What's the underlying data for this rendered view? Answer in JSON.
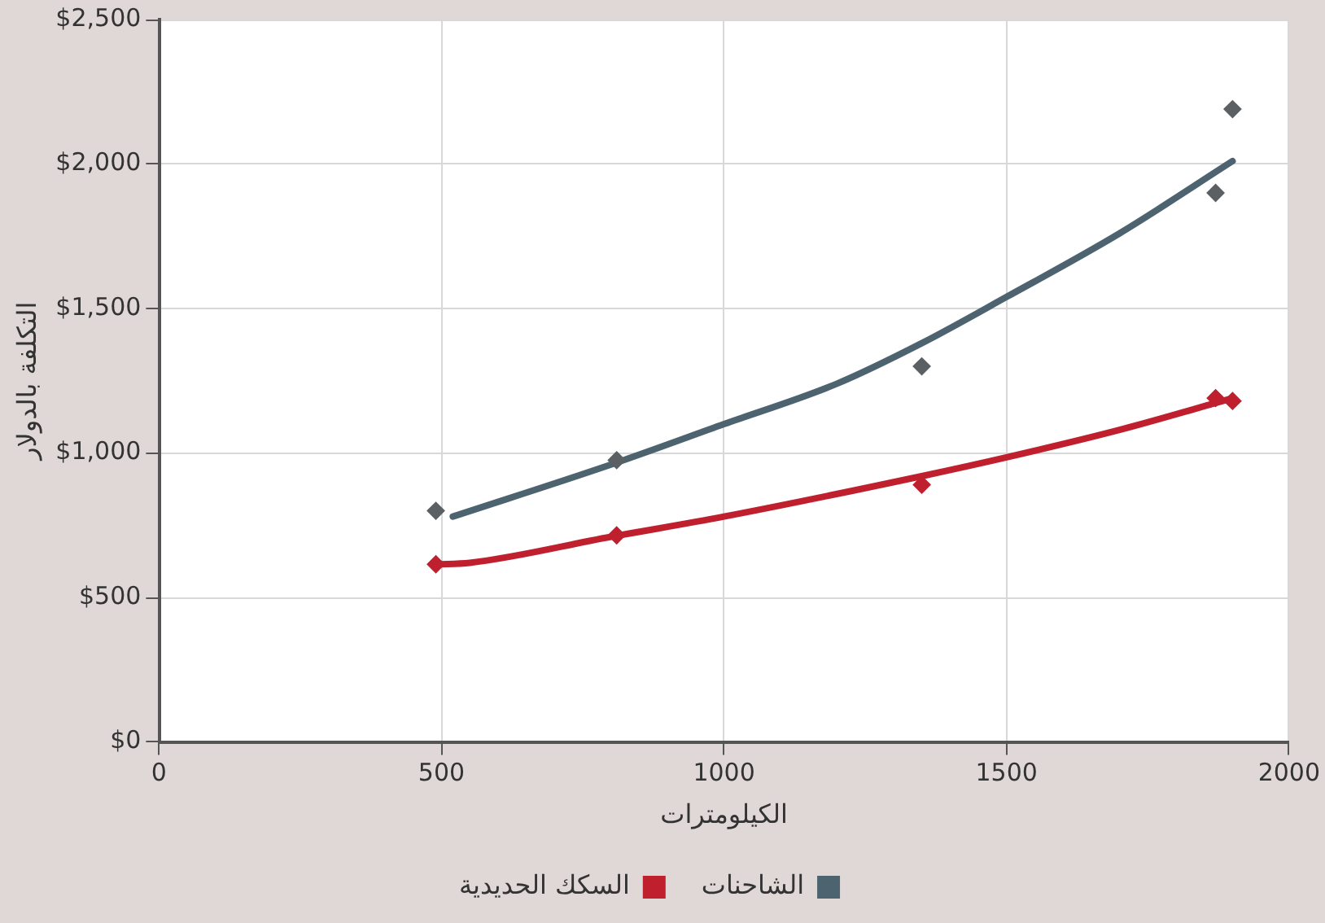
{
  "chart_data": {
    "type": "scatter",
    "xlabel": "الكيلومترات",
    "ylabel": "التكلفة بالدولار",
    "xlim": [
      0,
      2000
    ],
    "xticks": [
      0,
      500,
      1000,
      1500,
      2000
    ],
    "ylim": [
      0,
      2500
    ],
    "yticks": [
      {
        "value": 0,
        "label": "$0"
      },
      {
        "value": 500,
        "label": "$500"
      },
      {
        "value": 1000,
        "label": "$1,000"
      },
      {
        "value": 1500,
        "label": "$1,500"
      },
      {
        "value": 2000,
        "label": "$2,000"
      },
      {
        "value": 2500,
        "label": "$2,500"
      }
    ],
    "grid": true,
    "legend": "bottom",
    "series": [
      {
        "type": "scatter",
        "marker": "diamond",
        "color": "#5b6064",
        "x": [
          490,
          810,
          1350,
          1870,
          1900
        ],
        "values": [
          800,
          975,
          1300,
          1900,
          2190
        ]
      },
      {
        "type": "line",
        "name": "الشاحنات",
        "marker": "none",
        "line_style": "solid",
        "color": "#4d6470",
        "x": [
          520,
          800,
          1000,
          1200,
          1350,
          1500,
          1700,
          1900
        ],
        "values": [
          780,
          960,
          1100,
          1240,
          1380,
          1540,
          1760,
          2010
        ]
      },
      {
        "type": "scatter",
        "marker": "diamond",
        "color": "#c0202e",
        "x": [
          490,
          810,
          1350,
          1870,
          1900
        ],
        "values": [
          615,
          715,
          890,
          1190,
          1180
        ]
      },
      {
        "type": "line",
        "name": "السكك الحديدية",
        "marker": "none",
        "line_style": "solid",
        "color": "#c0202e",
        "x": [
          490,
          550,
          800,
          1000,
          1350,
          1500,
          1700,
          1900
        ],
        "values": [
          615,
          620,
          710,
          780,
          920,
          985,
          1080,
          1190
        ]
      }
    ]
  }
}
